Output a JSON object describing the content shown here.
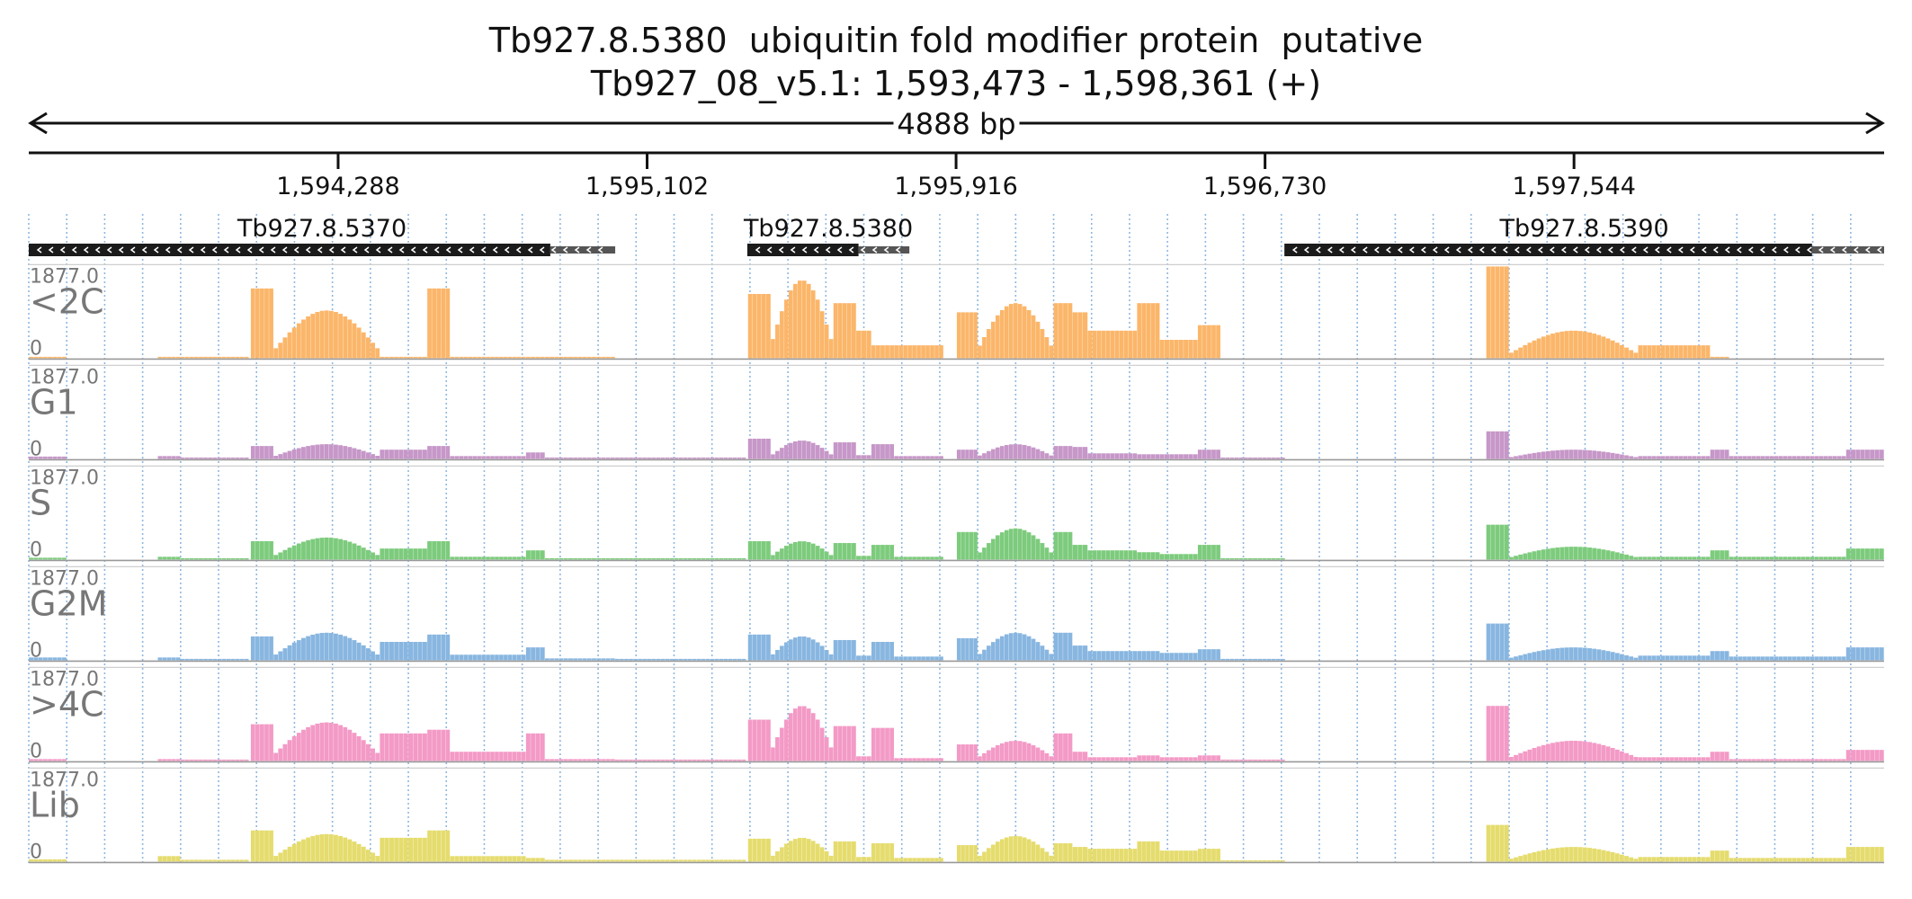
{
  "title_line_1": "Tb927.8.5380  ubiquitin fold modifier protein  putative",
  "title_line_2": "Tb927_08_v5.1: 1,593,473 - 1,598,361 (+)",
  "chart_data": {
    "type": "area",
    "region": {
      "chrom": "Tb927_08_v5.1",
      "start": 1593473,
      "end": 1598361,
      "strand": "+",
      "length_label": "4888 bp"
    },
    "ruler_ticks": [
      {
        "pos": 1594288,
        "label": "1,594,288"
      },
      {
        "pos": 1595102,
        "label": "1,595,102"
      },
      {
        "pos": 1595916,
        "label": "1,595,916"
      },
      {
        "pos": 1596730,
        "label": "1,596,730"
      },
      {
        "pos": 1597544,
        "label": "1,597,544"
      }
    ],
    "grid": true,
    "genes": [
      {
        "name": "Tb927.8.5370",
        "start": 1593473,
        "cds_end": 1594847,
        "end": 1595018,
        "strand": "-"
      },
      {
        "name": "Tb927.8.5380",
        "start": 1595366,
        "cds_end": 1595659,
        "end": 1595793,
        "strand": "-"
      },
      {
        "name": "Tb927.8.5390",
        "start": 1596781,
        "cds_end": 1598171,
        "end": 1598361,
        "strand": "-"
      }
    ],
    "ymax_label": "1877.0",
    "ymin_label": "0",
    "ylim": [
      0,
      1877
    ],
    "segments": [
      {
        "start": 1593473,
        "end": 1593573,
        "shape": "flat",
        "lv": [
          0.005,
          0.025,
          0.02,
          0.03,
          0.02,
          0.025
        ]
      },
      {
        "start": 1593813,
        "end": 1593873,
        "shape": "flat",
        "lv": [
          0.004,
          0.03,
          0.03,
          0.03,
          0.02,
          0.06
        ]
      },
      {
        "start": 1593873,
        "end": 1594053,
        "shape": "flat",
        "lv": [
          0.003,
          0.01,
          0.012,
          0.01,
          0.008,
          0.02
        ]
      },
      {
        "start": 1594058,
        "end": 1594118,
        "shape": "flat",
        "lv": [
          0.76,
          0.14,
          0.2,
          0.26,
          0.4,
          0.34
        ]
      },
      {
        "start": 1594118,
        "end": 1594398,
        "shape": "dome",
        "lv": [
          0.52,
          0.16,
          0.24,
          0.3,
          0.42,
          0.3
        ]
      },
      {
        "start": 1594398,
        "end": 1594523,
        "shape": "flat",
        "lv": [
          0.003,
          0.1,
          0.12,
          0.2,
          0.3,
          0.26
        ]
      },
      {
        "start": 1594523,
        "end": 1594583,
        "shape": "flat",
        "lv": [
          0.76,
          0.14,
          0.2,
          0.28,
          0.34,
          0.34
        ]
      },
      {
        "start": 1594583,
        "end": 1594783,
        "shape": "flat",
        "lv": [
          0.003,
          0.03,
          0.03,
          0.06,
          0.1,
          0.06
        ]
      },
      {
        "start": 1594783,
        "end": 1594833,
        "shape": "flat",
        "lv": [
          0.003,
          0.07,
          0.1,
          0.14,
          0.3,
          0.04
        ]
      },
      {
        "start": 1594833,
        "end": 1595018,
        "shape": "flat",
        "lv": [
          0.002,
          0.01,
          0.01,
          0.02,
          0.02,
          0.02
        ]
      },
      {
        "start": 1595018,
        "end": 1595363,
        "shape": "flat",
        "lv": [
          0.0,
          0.005,
          0.005,
          0.01,
          0.01,
          0.02
        ]
      },
      {
        "start": 1595368,
        "end": 1595428,
        "shape": "flat",
        "lv": [
          0.7,
          0.22,
          0.2,
          0.28,
          0.45,
          0.25
        ]
      },
      {
        "start": 1595428,
        "end": 1595593,
        "shape": "dome",
        "lv": [
          0.85,
          0.2,
          0.2,
          0.26,
          0.6,
          0.26
        ]
      },
      {
        "start": 1595593,
        "end": 1595653,
        "shape": "flat",
        "lv": [
          0.6,
          0.18,
          0.18,
          0.22,
          0.38,
          0.22
        ]
      },
      {
        "start": 1595653,
        "end": 1595693,
        "shape": "flat",
        "lv": [
          0.3,
          0.04,
          0.04,
          0.05,
          0.05,
          0.05
        ]
      },
      {
        "start": 1595693,
        "end": 1595753,
        "shape": "flat",
        "lv": [
          0.14,
          0.16,
          0.16,
          0.2,
          0.36,
          0.2
        ]
      },
      {
        "start": 1595753,
        "end": 1595883,
        "shape": "flat",
        "lv": [
          0.14,
          0.03,
          0.03,
          0.04,
          0.03,
          0.04
        ]
      },
      {
        "start": 1595918,
        "end": 1595973,
        "shape": "flat",
        "lv": [
          0.5,
          0.1,
          0.3,
          0.24,
          0.18,
          0.18
        ]
      },
      {
        "start": 1595973,
        "end": 1596173,
        "shape": "dome",
        "lv": [
          0.6,
          0.16,
          0.34,
          0.3,
          0.22,
          0.28
        ]
      },
      {
        "start": 1596173,
        "end": 1596223,
        "shape": "flat",
        "lv": [
          0.6,
          0.14,
          0.3,
          0.3,
          0.3,
          0.2
        ]
      },
      {
        "start": 1596223,
        "end": 1596263,
        "shape": "flat",
        "lv": [
          0.5,
          0.13,
          0.16,
          0.16,
          0.1,
          0.16
        ]
      },
      {
        "start": 1596263,
        "end": 1596393,
        "shape": "flat",
        "lv": [
          0.3,
          0.06,
          0.1,
          0.1,
          0.04,
          0.14
        ]
      },
      {
        "start": 1596393,
        "end": 1596453,
        "shape": "flat",
        "lv": [
          0.6,
          0.05,
          0.08,
          0.1,
          0.06,
          0.22
        ]
      },
      {
        "start": 1596453,
        "end": 1596553,
        "shape": "flat",
        "lv": [
          0.2,
          0.05,
          0.06,
          0.08,
          0.04,
          0.12
        ]
      },
      {
        "start": 1596553,
        "end": 1596613,
        "shape": "flat",
        "lv": [
          0.36,
          0.1,
          0.16,
          0.12,
          0.06,
          0.14
        ]
      },
      {
        "start": 1596613,
        "end": 1596783,
        "shape": "flat",
        "lv": [
          0.0,
          0.005,
          0.005,
          0.01,
          0.005,
          0.01
        ]
      },
      {
        "start": 1597313,
        "end": 1597373,
        "shape": "flat",
        "lv": [
          1.0,
          0.3,
          0.38,
          0.4,
          0.6,
          0.4
        ]
      },
      {
        "start": 1597373,
        "end": 1597713,
        "shape": "dome",
        "lv": [
          0.3,
          0.1,
          0.14,
          0.14,
          0.22,
          0.16
        ]
      },
      {
        "start": 1597713,
        "end": 1597903,
        "shape": "flat",
        "lv": [
          0.14,
          0.03,
          0.03,
          0.05,
          0.04,
          0.05
        ]
      },
      {
        "start": 1597903,
        "end": 1597953,
        "shape": "flat",
        "lv": [
          0.003,
          0.1,
          0.1,
          0.1,
          0.1,
          0.12
        ]
      },
      {
        "start": 1597953,
        "end": 1598261,
        "shape": "flat",
        "lv": [
          0.0,
          0.03,
          0.03,
          0.04,
          0.02,
          0.04
        ]
      },
      {
        "start": 1598261,
        "end": 1598361,
        "shape": "flat",
        "lv": [
          0.0,
          0.1,
          0.12,
          0.14,
          0.12,
          0.16
        ]
      }
    ],
    "series": [
      {
        "name": "<2C",
        "color": "#fbb66a"
      },
      {
        "name": "G1",
        "color": "#c697c8"
      },
      {
        "name": "S",
        "color": "#7dcb7d"
      },
      {
        "name": "G2M",
        "color": "#88b6e0"
      },
      {
        "name": ">4C",
        "color": "#f39ac6"
      },
      {
        "name": "Lib",
        "color": "#e5dc6e"
      }
    ]
  }
}
